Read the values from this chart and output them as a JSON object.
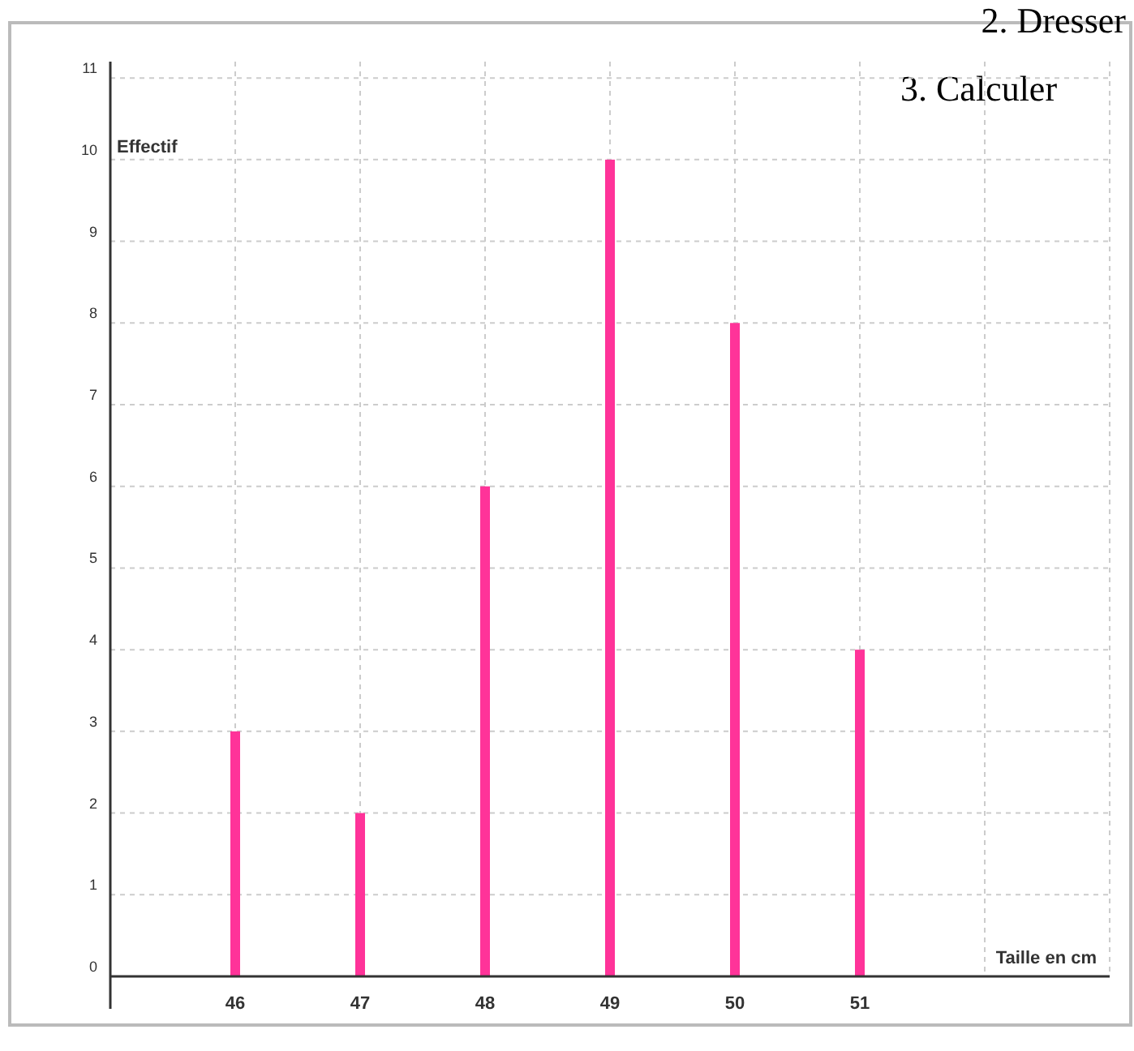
{
  "chart_data": {
    "type": "bar",
    "xlabel": "Taille en cm",
    "ylabel": "Effectif",
    "x": [
      46,
      47,
      48,
      49,
      50,
      51
    ],
    "values": [
      3,
      2,
      6,
      10,
      8,
      4
    ],
    "color": "#ff3399",
    "xlim": [
      45,
      53
    ],
    "xticks": [
      46,
      47,
      48,
      49,
      50,
      51,
      {
        "value": 52,
        "label": null
      },
      {
        "value": 53,
        "label": null
      }
    ],
    "ylim": [
      0,
      11.2
    ],
    "yticks": [
      0,
      1,
      2,
      3,
      4,
      5,
      6,
      7,
      8,
      9,
      10,
      11
    ],
    "grid": true,
    "annotations": [
      "2. Dresser",
      "3. Calculer"
    ]
  }
}
